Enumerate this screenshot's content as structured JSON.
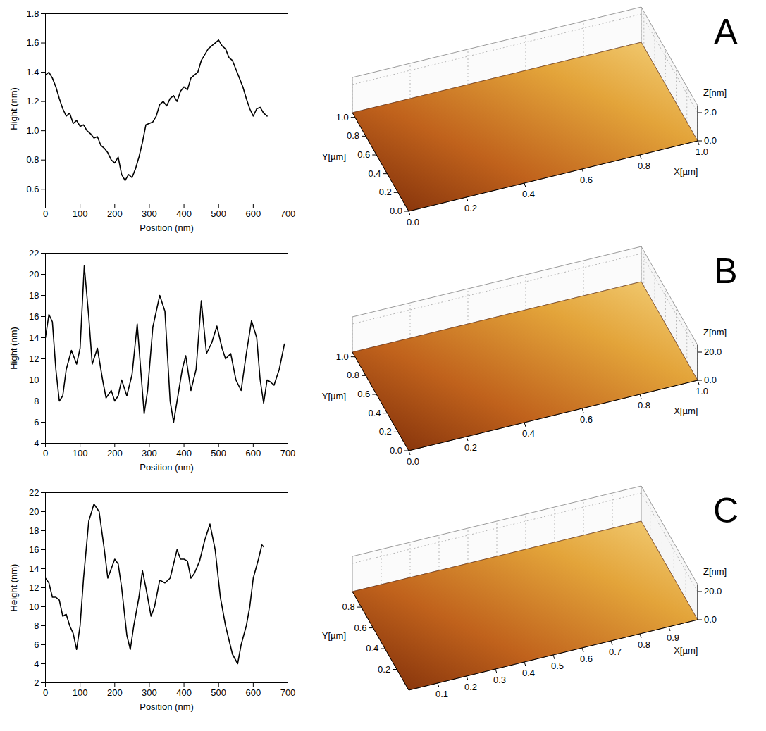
{
  "chart_data": [
    {
      "type": "line",
      "xlabel": "Position (nm)",
      "ylabel": "Hight (nm)",
      "color": "#000000",
      "xlim": [
        0,
        700
      ],
      "xticks": [
        0,
        100,
        200,
        300,
        400,
        500,
        600,
        700
      ],
      "ylim": [
        0.5,
        1.8
      ],
      "yticks": [
        0.6,
        0.8,
        {
          "value": 1,
          "label": "1.0"
        },
        1.2,
        1.4,
        1.6,
        1.8
      ],
      "x": [
        0,
        10,
        20,
        30,
        40,
        50,
        60,
        70,
        80,
        90,
        100,
        110,
        120,
        130,
        140,
        150,
        160,
        170,
        180,
        190,
        200,
        210,
        220,
        230,
        240,
        250,
        260,
        270,
        280,
        290,
        300,
        310,
        320,
        330,
        340,
        350,
        360,
        370,
        380,
        390,
        400,
        410,
        420,
        430,
        440,
        450,
        460,
        470,
        480,
        490,
        500,
        510,
        520,
        530,
        540,
        550,
        560,
        570,
        580,
        590,
        600,
        610,
        620,
        630,
        640
      ],
      "values": [
        1.38,
        1.4,
        1.36,
        1.3,
        1.22,
        1.15,
        1.1,
        1.12,
        1.05,
        1.07,
        1.03,
        1.04,
        1.0,
        0.98,
        0.95,
        0.96,
        0.9,
        0.88,
        0.85,
        0.8,
        0.78,
        0.82,
        0.7,
        0.66,
        0.7,
        0.68,
        0.74,
        0.82,
        0.92,
        1.04,
        1.05,
        1.06,
        1.1,
        1.18,
        1.2,
        1.17,
        1.22,
        1.24,
        1.2,
        1.27,
        1.3,
        1.28,
        1.36,
        1.38,
        1.4,
        1.48,
        1.52,
        1.56,
        1.58,
        1.6,
        1.62,
        1.58,
        1.56,
        1.5,
        1.48,
        1.42,
        1.36,
        1.3,
        1.22,
        1.15,
        1.1,
        1.15,
        1.16,
        1.12,
        1.1
      ]
    },
    {
      "type": "surface",
      "xlabel": "X[µm]",
      "ylabel": "Y[µm]",
      "zlabel": "Z[nm]",
      "annotations": [
        "A"
      ],
      "xlim": [
        0,
        1
      ],
      "xticks": [
        {
          "value": 0,
          "label": "0.0"
        },
        0.2,
        0.4,
        0.6,
        0.8,
        {
          "value": 1,
          "label": "1.0"
        }
      ],
      "ylim": [
        0,
        1.05
      ],
      "yticks": [
        {
          "value": 0,
          "label": "0.0"
        },
        0.2,
        0.4,
        0.6,
        0.8,
        {
          "value": 1,
          "label": "1.0"
        }
      ],
      "zlim": [
        0,
        2.5
      ],
      "zticks": [
        {
          "value": 0,
          "label": "0.0"
        },
        {
          "value": 2,
          "label": "2.0"
        }
      ]
    },
    {
      "type": "line",
      "xlabel": "Position (nm)",
      "ylabel": "Hight (nm)",
      "color": "#000000",
      "xlim": [
        0,
        700
      ],
      "xticks": [
        0,
        100,
        200,
        300,
        400,
        500,
        600,
        700
      ],
      "ylim": [
        4,
        22
      ],
      "yticks": [
        4,
        6,
        8,
        10,
        12,
        14,
        16,
        18,
        20,
        22
      ],
      "x": [
        0,
        10,
        20,
        30,
        40,
        50,
        60,
        75,
        90,
        100,
        112,
        125,
        135,
        150,
        165,
        175,
        190,
        200,
        210,
        220,
        235,
        250,
        265,
        275,
        285,
        295,
        310,
        330,
        345,
        360,
        370,
        380,
        395,
        405,
        420,
        435,
        450,
        465,
        480,
        495,
        510,
        520,
        535,
        550,
        565,
        580,
        595,
        610,
        620,
        630,
        640,
        650,
        660,
        675,
        690
      ],
      "values": [
        14,
        16.2,
        15.5,
        11,
        8,
        8.5,
        11,
        12.8,
        11.5,
        13,
        20.8,
        16,
        11.5,
        13,
        10,
        8.3,
        9,
        8,
        8.5,
        10,
        8.5,
        10.5,
        15.3,
        11,
        6.8,
        9,
        15,
        18,
        16.5,
        8,
        6,
        8,
        11,
        12.3,
        9,
        11,
        17.5,
        12.5,
        13.5,
        15.1,
        13,
        12,
        12.5,
        10,
        9,
        12.5,
        15.6,
        14,
        10,
        7.8,
        10,
        9.8,
        9.5,
        11,
        13.4
      ]
    },
    {
      "type": "surface",
      "xlabel": "X[µm]",
      "ylabel": "Y[µm]",
      "zlabel": "Z[nm]",
      "annotations": [
        "B"
      ],
      "xlim": [
        0,
        1
      ],
      "xticks": [
        {
          "value": 0,
          "label": "0.0"
        },
        0.2,
        0.4,
        0.6,
        0.8,
        {
          "value": 1,
          "label": "1.0"
        }
      ],
      "ylim": [
        0,
        1.05
      ],
      "yticks": [
        {
          "value": 0,
          "label": "0.0"
        },
        0.2,
        0.4,
        0.6,
        0.8,
        {
          "value": 1,
          "label": "1.0"
        }
      ],
      "zlim": [
        0,
        25
      ],
      "zticks": [
        {
          "value": 0,
          "label": "0.0"
        },
        {
          "value": 20,
          "label": "20.0"
        }
      ]
    },
    {
      "type": "line",
      "xlabel": "Position (nm)",
      "ylabel": "Height (nm)",
      "color": "#000000",
      "xlim": [
        0,
        700
      ],
      "xticks": [
        0,
        100,
        200,
        300,
        400,
        500,
        600,
        700
      ],
      "ylim": [
        2,
        22
      ],
      "yticks": [
        2,
        4,
        6,
        8,
        10,
        12,
        14,
        16,
        18,
        20,
        22
      ],
      "x": [
        0,
        10,
        20,
        30,
        40,
        50,
        60,
        70,
        80,
        90,
        100,
        110,
        125,
        140,
        155,
        170,
        180,
        190,
        200,
        210,
        220,
        235,
        245,
        255,
        270,
        280,
        290,
        305,
        315,
        330,
        345,
        360,
        380,
        390,
        400,
        410,
        420,
        430,
        445,
        460,
        475,
        490,
        505,
        520,
        540,
        555,
        565,
        580,
        590,
        600,
        615,
        625,
        630
      ],
      "values": [
        13,
        12.5,
        11,
        11,
        10.7,
        9,
        9.2,
        8,
        7.2,
        5.5,
        8,
        13,
        19,
        20.8,
        20,
        16,
        13,
        14,
        15,
        14.5,
        12,
        7,
        5.5,
        8,
        11,
        13.8,
        12,
        9,
        10,
        12.8,
        12.5,
        13,
        16,
        15,
        15,
        14.8,
        13,
        13.5,
        14.8,
        17,
        18.7,
        16,
        11,
        8,
        5,
        4,
        6,
        8,
        10,
        13,
        15,
        16.5,
        16.3
      ]
    },
    {
      "type": "surface",
      "xlabel": "X[µm]",
      "ylabel": "Y[µm]",
      "zlabel": "Z[nm]",
      "annotations": [
        "C"
      ],
      "xlim": [
        0,
        1
      ],
      "xticks": [
        0.1,
        0.2,
        0.3,
        0.4,
        0.5,
        0.6,
        0.7,
        0.8,
        0.9
      ],
      "ylim": [
        0,
        0.95
      ],
      "yticks": [
        0.2,
        0.4,
        0.6,
        0.8
      ],
      "zlim": [
        0,
        25
      ],
      "zticks": [
        {
          "value": 0,
          "label": "0.0"
        },
        {
          "value": 20,
          "label": "20.0"
        }
      ]
    }
  ]
}
